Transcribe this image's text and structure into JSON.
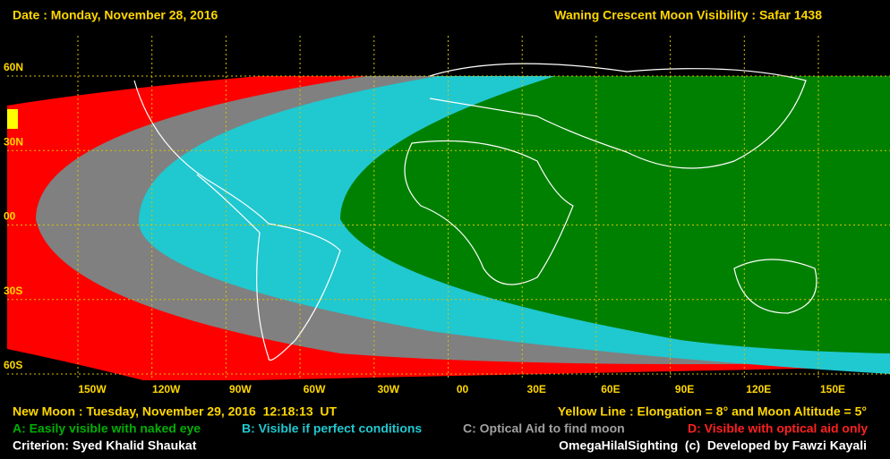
{
  "header": {
    "date": "Date : Monday, November 28, 2016",
    "title": "Waning Crescent Moon Visibility : Safar 1438"
  },
  "map": {
    "latitude_labels": [
      "60N",
      "30N",
      "00",
      "30S",
      "60S"
    ],
    "longitude_labels": [
      "150W",
      "120W",
      "90W",
      "60W",
      "30W",
      "00",
      "30E",
      "60E",
      "90E",
      "120E",
      "150E"
    ]
  },
  "footer": {
    "new_moon": "New Moon : Tuesday, November 29, 2016  12:18:13  UT",
    "yellow_line": "Yellow Line : Elongation = 8° and Moon Altitude = 5°",
    "legend": [
      {
        "text": "A: Easily visible with naked eye",
        "color": "#00b000"
      },
      {
        "text": "B: Visible if perfect conditions",
        "color": "#20c8d0"
      },
      {
        "text": "C: Optical Aid to find moon",
        "color": "#a0a0a0"
      },
      {
        "text": "D: Visible with optical aid only",
        "color": "#ff2020"
      }
    ],
    "criterion": "Criterion: Syed Khalid Shaukat",
    "credit": "OmegaHilalSighting  (c)  Developed by Fawzi Kayali"
  }
}
